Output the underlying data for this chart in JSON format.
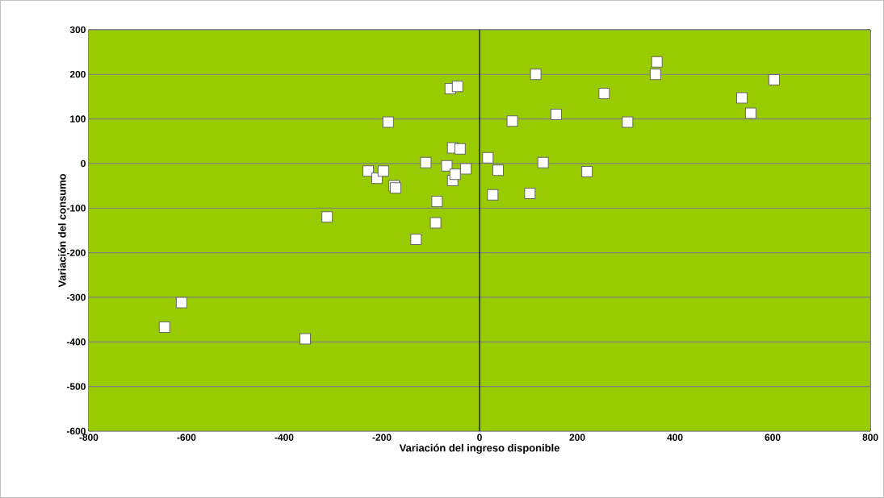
{
  "chart_data": {
    "type": "scatter",
    "xlabel": "Variación del ingreso disponible",
    "ylabel": "Variación del consumo",
    "x": [
      -645,
      -610,
      -357,
      -312,
      -228,
      -210,
      -197,
      -187,
      -175,
      -172,
      -130,
      -110,
      -90,
      -87,
      -67,
      -60,
      -55,
      -55,
      -50,
      -45,
      -40,
      -28,
      17,
      27,
      38,
      67,
      103,
      115,
      130,
      157,
      220,
      255,
      303,
      360,
      363,
      537,
      555,
      603
    ],
    "values": [
      -367,
      -312,
      -393,
      -120,
      -17,
      -33,
      -17,
      93,
      -50,
      -55,
      -170,
      2,
      -133,
      -85,
      -5,
      168,
      35,
      -38,
      -24,
      173,
      33,
      -12,
      13,
      -70,
      -15,
      95,
      -67,
      200,
      2,
      110,
      -18,
      157,
      93,
      200,
      228,
      147,
      113,
      188
    ],
    "color": "#ffffff",
    "marker": "square",
    "grid": "y",
    "ref_lines": [
      {
        "axis": "x",
        "value": 0,
        "color": "#000000"
      }
    ],
    "xlim": [
      -800,
      800
    ],
    "xticks": [
      -800,
      -600,
      -400,
      -200,
      0,
      200,
      400,
      600,
      800
    ],
    "ylim": [
      -600,
      300
    ],
    "yticks": [
      -600,
      -500,
      -400,
      -300,
      -200,
      -100,
      0,
      100,
      200,
      300
    ]
  }
}
